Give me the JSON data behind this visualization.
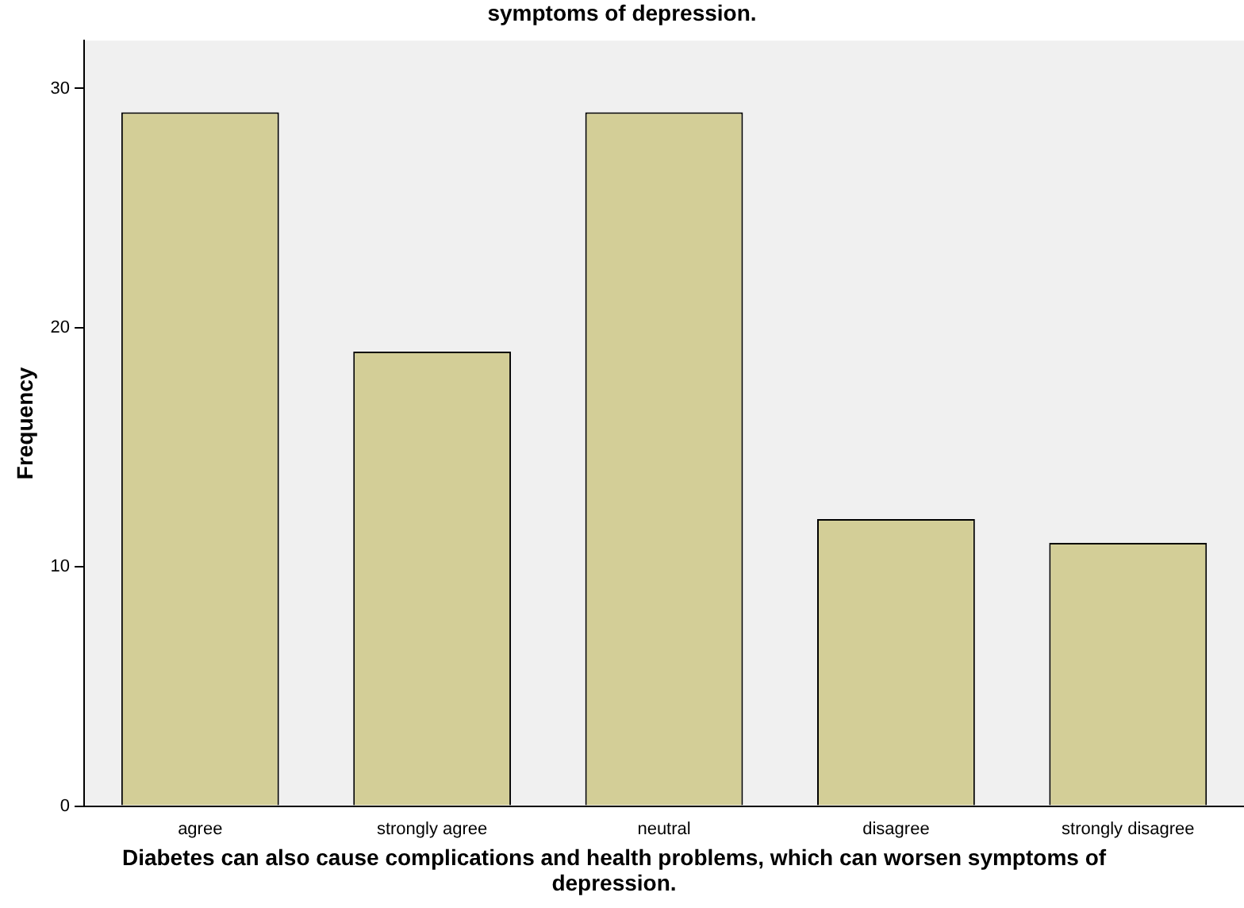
{
  "chart_data": {
    "type": "bar",
    "title": "symptoms of depression.",
    "xlabel": "Diabetes can also cause complications and health problems, which can worsen symptoms of depression.",
    "ylabel": "Frequency",
    "categories": [
      "agree",
      "strongly agree",
      "neutral",
      "disagree",
      "strongly disagree"
    ],
    "values": [
      29,
      19,
      29,
      12,
      11
    ],
    "color": "#d3ce97",
    "ylim": [
      0,
      32
    ],
    "yticks": [
      0,
      10,
      20,
      30
    ],
    "grid": false,
    "legend": false
  }
}
